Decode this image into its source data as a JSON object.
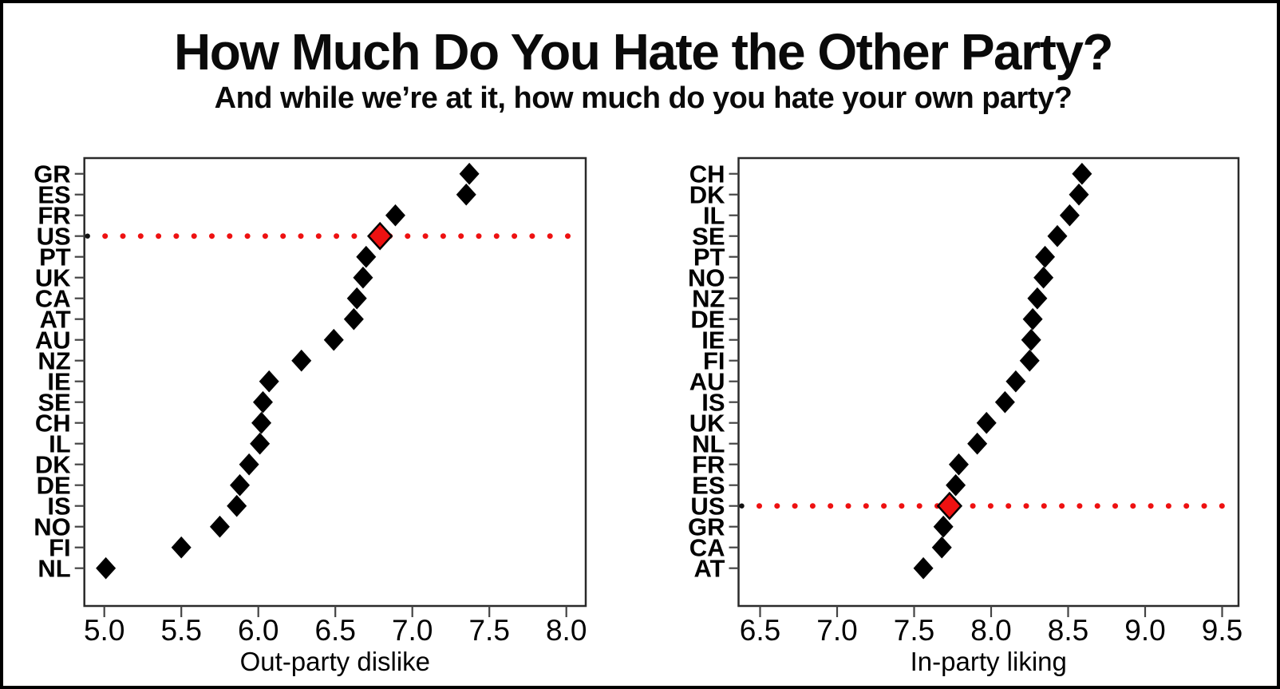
{
  "page": {
    "title": "How Much Do You Hate the Other Party?",
    "subtitle": "And while we’re at it, how much do you hate your own party?"
  },
  "colors": {
    "highlight_red": "#EE1111",
    "point_black": "#000000",
    "frame_black": "#000000",
    "box_stroke": "#2a2a2a",
    "tick_stroke": "#444444"
  },
  "chart_data": [
    {
      "type": "scatter",
      "panel": "left",
      "marker": "diamond",
      "grid": false,
      "legend": "none",
      "xlabel": "Out-party dislike",
      "xlim": [
        4.88,
        8.12
      ],
      "xticks": [
        5.0,
        5.5,
        6.0,
        6.5,
        7.0,
        7.5,
        8.0
      ],
      "highlight_category": "US",
      "highlight_note": "US shown as red diamond with red dotted leader line across the panel",
      "categories": [
        "GR",
        "ES",
        "FR",
        "US",
        "PT",
        "UK",
        "CA",
        "AT",
        "AU",
        "NZ",
        "IE",
        "SE",
        "CH",
        "IL",
        "DK",
        "DE",
        "IS",
        "NO",
        "FI",
        "NL"
      ],
      "values": [
        7.37,
        7.35,
        6.89,
        6.79,
        6.7,
        6.68,
        6.64,
        6.62,
        6.49,
        6.28,
        6.07,
        6.03,
        6.02,
        6.01,
        5.94,
        5.88,
        5.86,
        5.75,
        5.5,
        5.01
      ]
    },
    {
      "type": "scatter",
      "panel": "right",
      "marker": "diamond",
      "grid": false,
      "legend": "none",
      "xlabel": "In-party liking",
      "xlim": [
        6.36,
        9.61
      ],
      "xticks": [
        6.5,
        7.0,
        7.5,
        8.0,
        8.5,
        9.0,
        9.5
      ],
      "highlight_category": "US",
      "highlight_note": "US shown as red diamond with red dotted leader line across the panel",
      "categories": [
        "CH",
        "DK",
        "IL",
        "SE",
        "PT",
        "NO",
        "NZ",
        "DE",
        "IE",
        "FI",
        "AU",
        "IS",
        "UK",
        "NL",
        "FR",
        "ES",
        "US",
        "GR",
        "CA",
        "AT"
      ],
      "values": [
        8.59,
        8.57,
        8.51,
        8.43,
        8.35,
        8.34,
        8.3,
        8.27,
        8.26,
        8.25,
        8.16,
        8.09,
        7.97,
        7.91,
        7.79,
        7.77,
        7.73,
        7.69,
        7.68,
        7.56
      ]
    }
  ]
}
